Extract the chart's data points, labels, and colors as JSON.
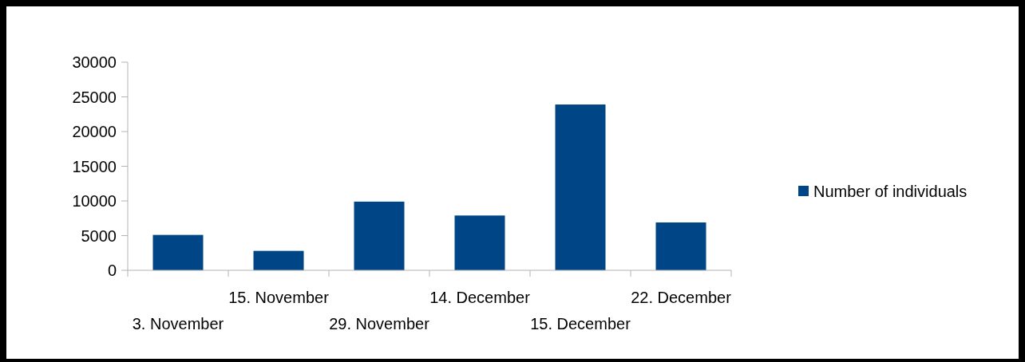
{
  "chart_data": {
    "type": "bar",
    "categories": [
      "3. November",
      "15. November",
      "29. November",
      "14. December",
      "15. December",
      "22. December"
    ],
    "series": [
      {
        "name": "Number of individuals",
        "color": "#004586",
        "values": [
          5100,
          2800,
          9900,
          7900,
          23900,
          6900
        ]
      }
    ],
    "ylim": [
      0,
      30000
    ],
    "yticks": [
      0,
      5000,
      10000,
      15000,
      20000,
      25000,
      30000
    ],
    "grid": false,
    "legend": "right"
  }
}
